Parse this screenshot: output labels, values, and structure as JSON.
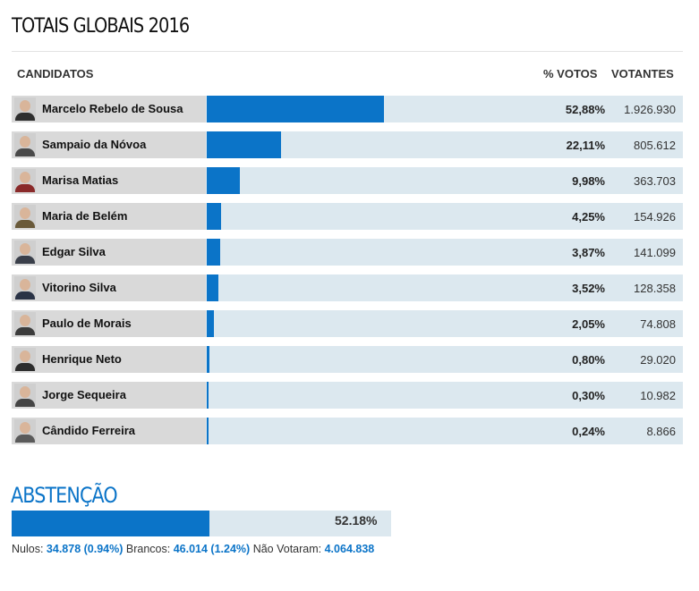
{
  "title": "TOTAIS GLOBAIS 2016",
  "headers": {
    "candidates": "CANDIDATOS",
    "pct": "% VOTOS",
    "voters": "VOTANTES"
  },
  "colors": {
    "bar": "#0b74c8",
    "track": "#dce8ef",
    "name_bg": "#d9d9d9",
    "accent": "#0b74c8"
  },
  "chart_data": {
    "type": "bar",
    "orientation": "horizontal",
    "title": "TOTAIS GLOBAIS 2016",
    "xlim": [
      0,
      100
    ],
    "categories": [
      "Marcelo Rebelo de Sousa",
      "Sampaio da Nóvoa",
      "Marisa Matias",
      "Maria de Belém",
      "Edgar Silva",
      "Vitorino Silva",
      "Paulo de Morais",
      "Henrique Neto",
      "Jorge Sequeira",
      "Cândido Ferreira"
    ],
    "values": [
      52.88,
      22.11,
      9.98,
      4.25,
      3.87,
      3.52,
      2.05,
      0.8,
      0.3,
      0.24
    ],
    "pct_labels": [
      "52,88%",
      "22,11%",
      "9,98%",
      "4,25%",
      "3,87%",
      "3,52%",
      "2,05%",
      "0,80%",
      "0,30%",
      "0,24%"
    ],
    "votes_labels": [
      "1.926.930",
      "805.612",
      "363.703",
      "154.926",
      "141.099",
      "128.358",
      "74.808",
      "29.020",
      "10.982",
      "8.866"
    ]
  },
  "abstention": {
    "title": "ABSTENÇÃO",
    "value": 52.18,
    "label": "52.18%"
  },
  "footer": {
    "nulos_label": "Nulos:",
    "nulos_value": "34.878 (0.94%)",
    "brancos_label": "Brancos:",
    "brancos_value": "46.014 (1.24%)",
    "nao_label": "Não Votaram:",
    "nao_value": "4.064.838"
  }
}
